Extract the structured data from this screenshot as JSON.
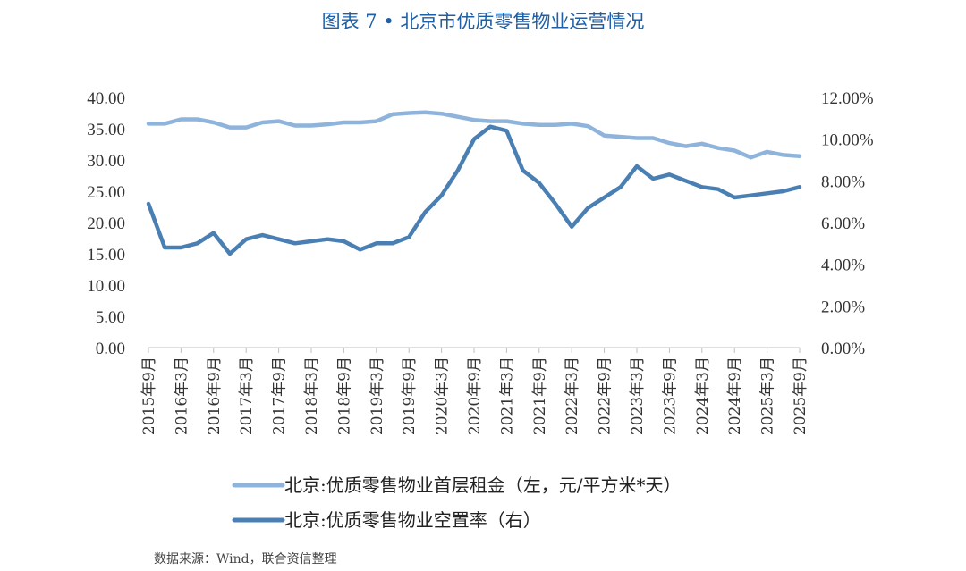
{
  "title": "图表 7 • 北京市优质零售物业运营情况",
  "source": "数据来源：Wind，联合资信整理",
  "chart_data": {
    "type": "line",
    "x": [
      "2015年9月",
      "2015年12月",
      "2016年3月",
      "2016年6月",
      "2016年9月",
      "2016年12月",
      "2017年3月",
      "2017年6月",
      "2017年9月",
      "2017年12月",
      "2018年3月",
      "2018年6月",
      "2018年9月",
      "2018年12月",
      "2019年3月",
      "2019年6月",
      "2019年9月",
      "2019年12月",
      "2020年3月",
      "2020年6月",
      "2020年9月",
      "2020年12月",
      "2021年3月",
      "2021年6月",
      "2021年9月",
      "2021年12月",
      "2022年3月",
      "2022年6月",
      "2022年9月",
      "2022年12月",
      "2023年3月",
      "2023年6月",
      "2023年9月",
      "2023年12月",
      "2024年3月",
      "2024年6月",
      "2024年9月",
      "2024年12月",
      "2025年3月",
      "2025年6月",
      "2025年9月"
    ],
    "x_tick_labels": [
      "2015年9月",
      "2016年3月",
      "2016年9月",
      "2017年3月",
      "2017年9月",
      "2018年3月",
      "2018年9月",
      "2019年3月",
      "2019年9月",
      "2020年3月",
      "2020年9月",
      "2021年3月",
      "2021年9月",
      "2022年3月",
      "2022年9月",
      "2023年3月",
      "2023年9月",
      "2024年3月",
      "2024年9月",
      "2025年3月",
      "2025年9月"
    ],
    "y_left": {
      "ylim": [
        0,
        40
      ],
      "ticks": [
        "0.00",
        "5.00",
        "10.00",
        "15.00",
        "20.00",
        "25.00",
        "30.00",
        "35.00",
        "40.00"
      ]
    },
    "y_right": {
      "ylim": [
        0,
        12
      ],
      "ticks": [
        "0.00%",
        "2.00%",
        "4.00%",
        "6.00%",
        "8.00%",
        "10.00%",
        "12.00%"
      ]
    },
    "series": [
      {
        "name": "北京:优质零售物业首层租金（左，元/平方米*天）",
        "axis": "left",
        "color": "#8fb4dc",
        "values": [
          35.8,
          35.8,
          36.5,
          36.5,
          36.0,
          35.2,
          35.2,
          36.0,
          36.2,
          35.5,
          35.5,
          35.7,
          36.0,
          36.0,
          36.2,
          37.3,
          37.5,
          37.6,
          37.4,
          36.9,
          36.4,
          36.2,
          36.2,
          35.8,
          35.6,
          35.6,
          35.8,
          35.4,
          33.9,
          33.7,
          33.5,
          33.5,
          32.7,
          32.2,
          32.6,
          31.9,
          31.5,
          30.4,
          31.3,
          30.8,
          30.6
        ]
      },
      {
        "name": "北京:优质零售物业空置率（右）",
        "axis": "right",
        "color": "#4a7fb3",
        "values": [
          6.9,
          4.8,
          4.8,
          5.0,
          5.5,
          4.5,
          5.2,
          5.4,
          5.2,
          5.0,
          5.1,
          5.2,
          5.1,
          4.7,
          5.0,
          5.0,
          5.3,
          6.5,
          7.3,
          8.5,
          10.0,
          10.6,
          10.4,
          8.5,
          7.9,
          6.9,
          5.8,
          6.7,
          7.2,
          7.7,
          8.7,
          8.1,
          8.3,
          8.0,
          7.7,
          7.6,
          7.2,
          7.3,
          7.4,
          7.5,
          7.7
        ]
      }
    ],
    "legend_position": "bottom",
    "grid": false
  }
}
